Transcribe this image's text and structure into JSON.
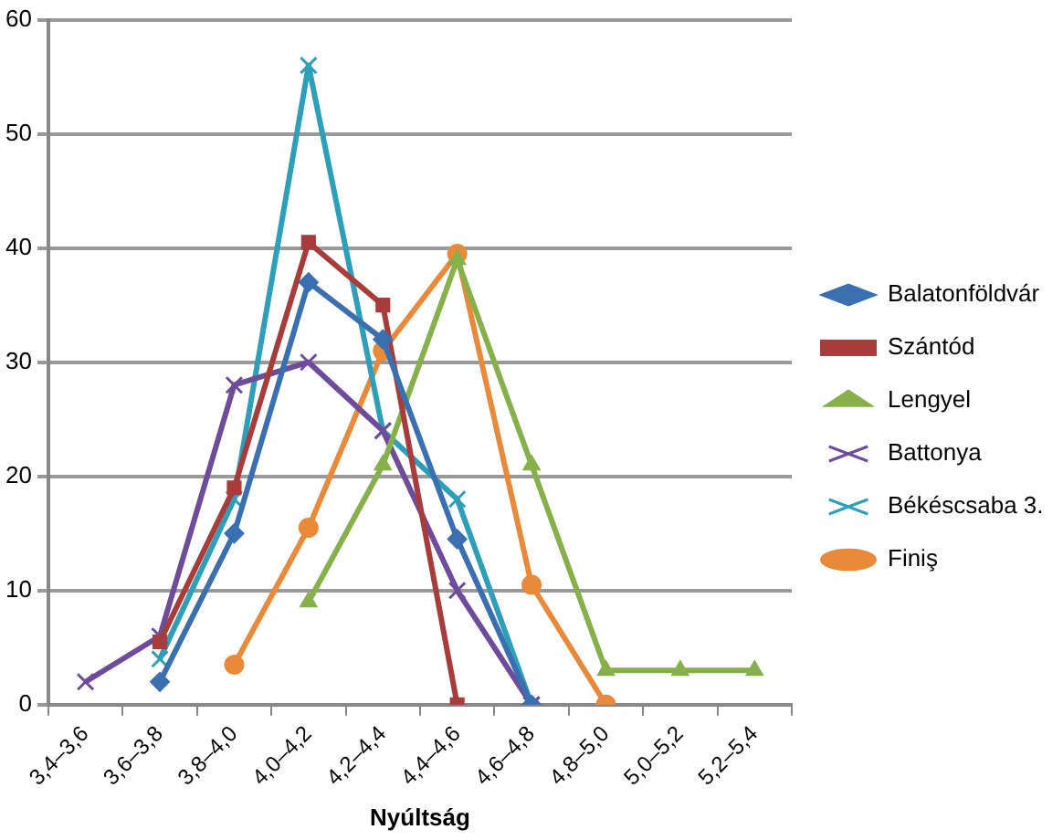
{
  "chart_data": {
    "type": "line",
    "xlabel": "Nyúltság",
    "categories": [
      "3,4–3,6",
      "3,6–3,8",
      "3,8–4,0",
      "4,0–4,2",
      "4,2–4,4",
      "4,4–4,6",
      "4,6–4,8",
      "4,8–5,0",
      "5,0–5,2",
      "5,2–5,4"
    ],
    "series": [
      {
        "name": "Balatonföldvár",
        "color": "#3a6fb0",
        "marker": "diamond",
        "values": [
          null,
          2,
          15,
          37,
          32,
          14.5,
          0,
          null,
          null,
          null
        ]
      },
      {
        "name": "Szántód",
        "color": "#a83c3a",
        "marker": "square",
        "values": [
          null,
          5.5,
          19,
          40.5,
          35,
          0,
          null,
          null,
          null,
          null
        ]
      },
      {
        "name": "Lengyel",
        "color": "#86b04a",
        "marker": "triangle",
        "values": [
          null,
          null,
          null,
          9,
          21,
          39,
          21,
          3,
          3,
          3
        ]
      },
      {
        "name": "Battonya",
        "color": "#6e4c9a",
        "marker": "cross",
        "values": [
          2,
          6,
          28,
          30,
          24,
          10,
          0,
          null,
          null,
          null
        ]
      },
      {
        "name": "Békéscsaba 3.",
        "color": "#2e9fb8",
        "marker": "cross",
        "values": [
          null,
          4,
          18,
          56,
          24,
          18,
          0,
          null,
          null,
          null
        ]
      },
      {
        "name": "Finiş",
        "color": "#e88a3a",
        "marker": "circle",
        "values": [
          null,
          null,
          3.5,
          15.5,
          31,
          39.5,
          10.5,
          0,
          null,
          null
        ]
      }
    ],
    "ylim": [
      0,
      60
    ],
    "yticks": [
      0,
      10,
      20,
      30,
      40,
      50,
      60
    ],
    "grid": "y",
    "legend": "right",
    "line_style": "solid"
  }
}
